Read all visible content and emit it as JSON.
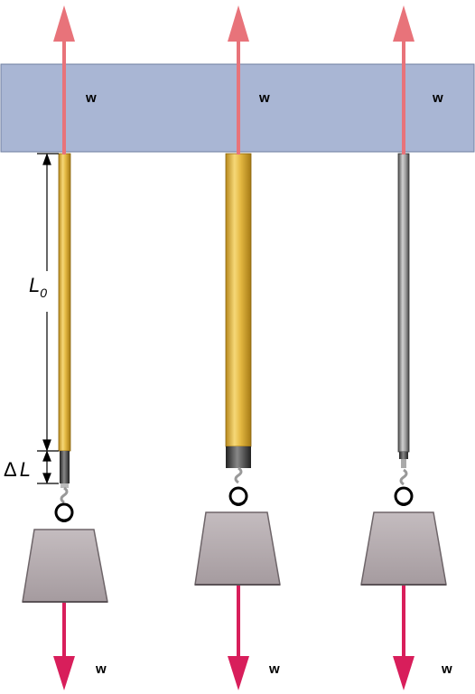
{
  "labels": {
    "force_top": [
      "w",
      "w",
      "w"
    ],
    "force_bottom": [
      "w",
      "w",
      "w"
    ],
    "length_symbol": "L",
    "length_subscript": "0",
    "delta_symbol": "Δ",
    "delta_length": "L"
  },
  "colors": {
    "support_bar": "#a9b6d4",
    "force_arrow_up": "#e8737a",
    "force_arrow_down": "#d81e5b",
    "rod_gold": "#e2b640",
    "rod_steel": "#8a8a8a",
    "weight": "#b3aaad"
  },
  "icons": {
    "weight": "trapezoid-weight-icon",
    "hook": "hook-ring-icon",
    "arrow": "force-arrow-icon"
  }
}
